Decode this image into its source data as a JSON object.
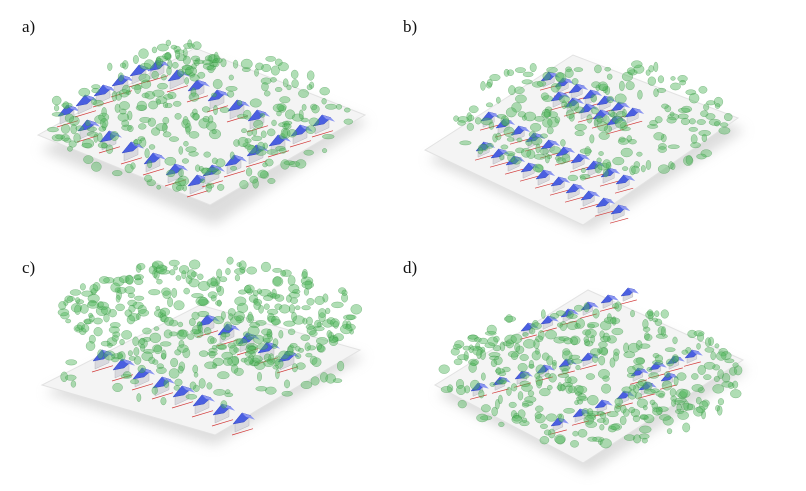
{
  "panels": [
    {
      "label": "a)"
    },
    {
      "label": "b)"
    },
    {
      "label": "c)"
    },
    {
      "label": "d)"
    }
  ],
  "colors": {
    "ground": "#f4f4f4",
    "roof": "#4a5fe0",
    "roof_light": "#8a95f0",
    "wall": "#d9d9de",
    "tree": "#4fb55a",
    "parcel_line": "#d23a3a"
  }
}
